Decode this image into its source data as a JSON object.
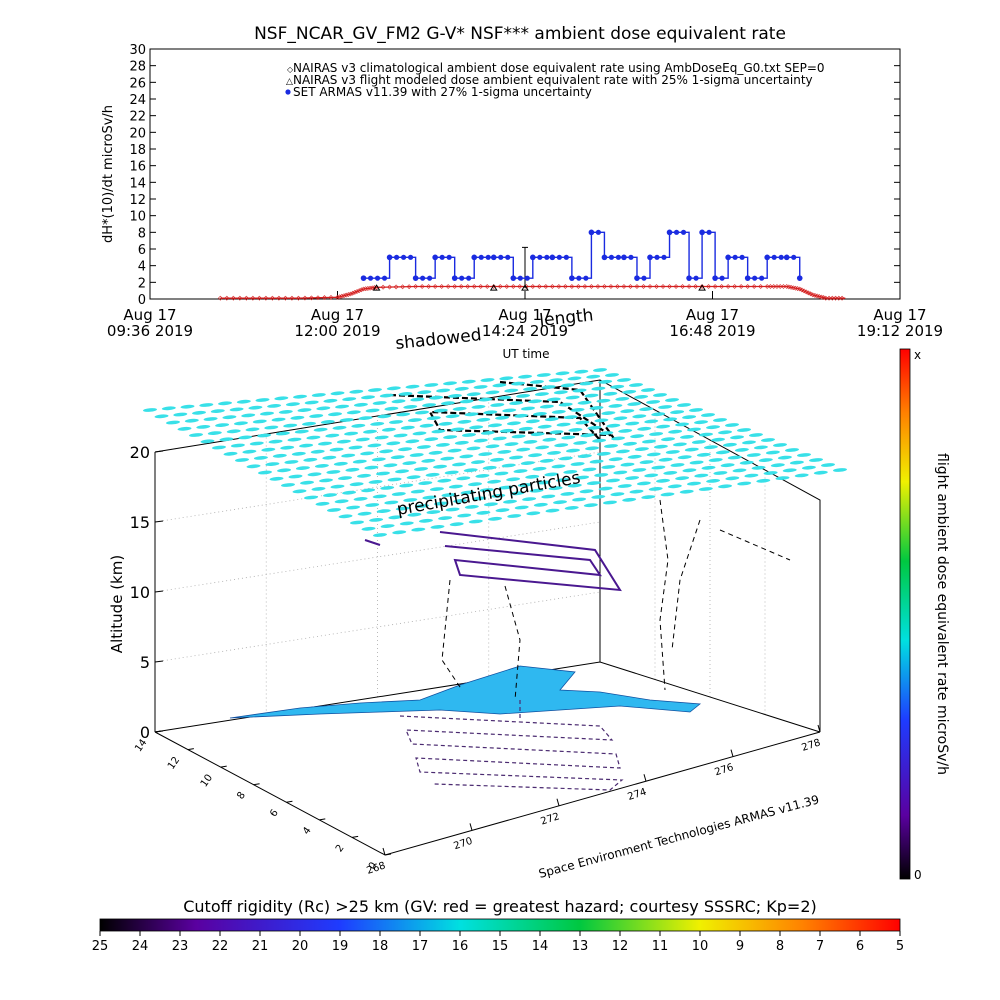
{
  "top_chart": {
    "title": "NSF_NCAR_GV_FM2 G-V* NSF*** ambient dose equivalent rate",
    "ylabel": "dH*(10)/dt microSv/h",
    "xlabel": "UT time",
    "legend": [
      "NAIRAS v3 climatological ambient dose equivalent rate using AmbDoseEq_G0.txt SEP=0",
      "NAIRAS v3 flight modeled dose ambient equivalent rate with 25% 1-sigma uncertainty",
      "SET ARMAS v11.39 with 27% 1-sigma uncertainty"
    ]
  },
  "overlay_labels": {
    "shadowed": "shadowed",
    "length": "length",
    "precipitating": "precipitating particles"
  },
  "main_3d": {
    "zlabel": "Altitude (km)",
    "z_ticks": [
      "0",
      "5",
      "10",
      "15",
      "20"
    ],
    "lat_ticks": [
      "0",
      "2",
      "4",
      "6",
      "8",
      "10",
      "12",
      "14"
    ],
    "lon_ticks": [
      "268",
      "270",
      "272",
      "274",
      "276",
      "278"
    ],
    "credit": "Space Environment Technologies ARMAS v11.39"
  },
  "right_colorbar": {
    "label": "flight ambient dose equivalent rate microSv/h",
    "top": "x",
    "bottom": "0"
  },
  "bottom_colorbar": {
    "label": "Cutoff rigidity (Rc) >25 km (GV: red = greatest hazard; courtesy SSSRC; Kp=2)",
    "ticks": [
      "25",
      "24",
      "23",
      "22",
      "21",
      "20",
      "19",
      "18",
      "17",
      "16",
      "15",
      "14",
      "13",
      "12",
      "11",
      "10",
      "9",
      "8",
      "7",
      "6",
      "5"
    ]
  },
  "colors": {
    "nairas_clim": "#d42020",
    "nairas_flight": "#000000",
    "armas": "#1a2be0",
    "cutoff_surface": "#38e0e8",
    "ground_fill": "#2fb8f0"
  },
  "chart_data": [
    {
      "type": "line",
      "title": "NSF_NCAR_GV_FM2 G-V* NSF*** ambient dose equivalent rate",
      "xlabel": "UT time",
      "ylabel": "dH*(10)/dt microSv/h",
      "xlim": [
        "09:36",
        "19:12"
      ],
      "ylim": [
        0,
        30
      ],
      "x_ticks": [
        "Aug 17 09:36 2019",
        "Aug 17 12:00 2019",
        "Aug 17 14:24 2019",
        "Aug 17 16:48 2019",
        "Aug 17 19:12 2019"
      ],
      "y_ticks": [
        0,
        2,
        4,
        6,
        8,
        10,
        12,
        14,
        16,
        18,
        20,
        22,
        24,
        26,
        28,
        30
      ],
      "legend_position": "top-right",
      "series": [
        {
          "name": "NAIRAS v3 climatological ambient dose equivalent rate using AmbDoseEq_G0.txt SEP=0",
          "x": [
            "10:30",
            "11:00",
            "11:30",
            "12:00",
            "12:10",
            "12:20",
            "12:30",
            "13:00",
            "13:30",
            "14:00",
            "14:30",
            "15:00",
            "15:30",
            "16:00",
            "16:30",
            "17:00",
            "17:30",
            "17:45",
            "17:55",
            "18:05",
            "18:15",
            "18:30"
          ],
          "y": [
            0.1,
            0.1,
            0.1,
            0.2,
            0.6,
            1.2,
            1.4,
            1.5,
            1.5,
            1.5,
            1.5,
            1.5,
            1.5,
            1.5,
            1.5,
            1.5,
            1.5,
            1.5,
            1.2,
            0.5,
            0.1,
            0.1
          ]
        },
        {
          "name": "NAIRAS v3 flight modeled dose ambient equivalent rate with 25% 1-sigma uncertainty",
          "x": [
            "12:30",
            "14:00",
            "14:24",
            "16:40"
          ],
          "y": [
            1.3,
            1.3,
            1.3,
            1.3
          ]
        },
        {
          "name": "SET ARMAS v11.39 with 27% 1-sigma uncertainty",
          "x": [
            "12:20",
            "12:40",
            "13:00",
            "13:15",
            "13:30",
            "13:45",
            "14:00",
            "14:15",
            "14:30",
            "14:45",
            "15:00",
            "15:15",
            "15:25",
            "15:40",
            "15:50",
            "16:00",
            "16:15",
            "16:30",
            "16:40",
            "16:50",
            "17:00",
            "17:15",
            "17:30",
            "17:45",
            "17:55"
          ],
          "y": [
            2.5,
            5,
            2.5,
            5,
            2.5,
            5,
            5,
            2.5,
            5,
            5,
            2.5,
            8,
            5,
            5,
            2.5,
            5,
            8,
            2.5,
            8,
            2.5,
            5,
            2.5,
            5,
            5,
            2.5
          ]
        }
      ]
    }
  ]
}
